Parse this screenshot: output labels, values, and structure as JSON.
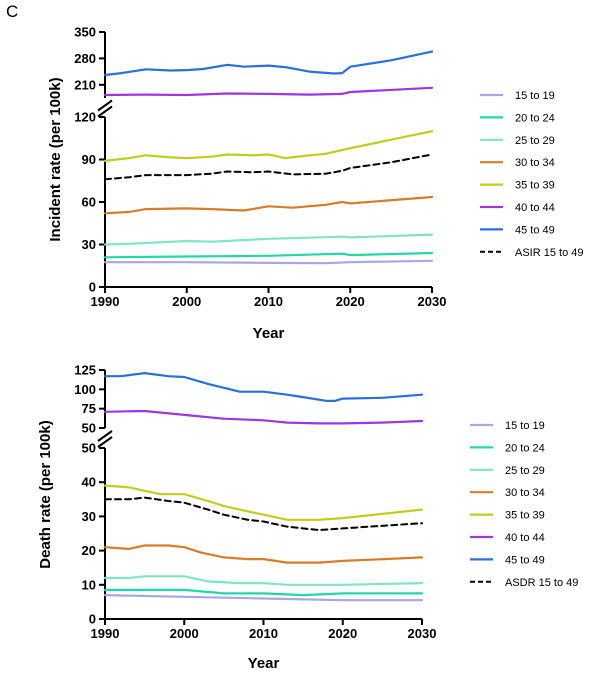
{
  "panel_label": "C",
  "chart_data": [
    {
      "type": "line",
      "title": "",
      "xlabel": "Year",
      "ylabel": "Incident rate (per 100k)",
      "xlim": [
        1990,
        2030
      ],
      "x_ticks": [
        "1990",
        "2000",
        "2010",
        "2020",
        "2030"
      ],
      "axis_breaks": [
        {
          "segment": "lower",
          "ylim": [
            0,
            120
          ],
          "ticks": [
            "0",
            "30",
            "60",
            "90",
            "120"
          ]
        },
        {
          "segment": "upper",
          "ylim": [
            175,
            350
          ],
          "ticks": [
            "210",
            "280",
            "350"
          ]
        }
      ],
      "legend_position": "right",
      "grid": false,
      "series": [
        {
          "name": "15 to 19",
          "color": "#a9a6e6",
          "dash": false,
          "segment": "lower",
          "x": [
            1990,
            2000,
            2010,
            2017,
            2020,
            2030
          ],
          "y": [
            17.5,
            17.5,
            17.0,
            16.8,
            17.5,
            18.5
          ]
        },
        {
          "name": "20 to 24",
          "color": "#22d8a8",
          "dash": false,
          "segment": "lower",
          "x": [
            1990,
            2000,
            2010,
            2019,
            2020,
            2030
          ],
          "y": [
            21,
            21.5,
            22,
            23.5,
            22.5,
            24
          ]
        },
        {
          "name": "25 to 29",
          "color": "#7fe6c4",
          "dash": false,
          "segment": "lower",
          "x": [
            1990,
            1993,
            2000,
            2003,
            2010,
            2019,
            2020,
            2030
          ],
          "y": [
            30,
            30.5,
            32.5,
            32,
            34,
            35.5,
            35,
            37
          ]
        },
        {
          "name": "30 to 34",
          "color": "#d87c28",
          "dash": false,
          "segment": "lower",
          "x": [
            1990,
            1993,
            1995,
            2000,
            2003,
            2007,
            2010,
            2013,
            2017,
            2019,
            2020,
            2030
          ],
          "y": [
            52,
            53,
            55,
            55.5,
            55,
            54,
            57,
            56,
            58,
            60,
            59,
            63.5
          ]
        },
        {
          "name": "35 to 39",
          "color": "#c3cc1e",
          "dash": false,
          "segment": "lower",
          "x": [
            1990,
            1993,
            1995,
            1998,
            2000,
            2003,
            2005,
            2008,
            2010,
            2012,
            2015,
            2017,
            2020,
            2025,
            2030
          ],
          "y": [
            89,
            91,
            93,
            91.5,
            91,
            92,
            93.5,
            93,
            93.5,
            91,
            93,
            94,
            98,
            104,
            110
          ]
        },
        {
          "name": "40 to 44",
          "color": "#9b38e0",
          "dash": false,
          "segment": "upper",
          "x": [
            1990,
            1995,
            2000,
            2005,
            2010,
            2015,
            2019,
            2020,
            2030
          ],
          "y": [
            183,
            184,
            183,
            187,
            186,
            184,
            186,
            191,
            202
          ]
        },
        {
          "name": "45 to 49",
          "color": "#2a6fe0",
          "dash": false,
          "segment": "upper",
          "x": [
            1990,
            1992,
            1995,
            1998,
            2000,
            2002,
            2005,
            2007,
            2010,
            2012,
            2015,
            2018,
            2019,
            2020,
            2025,
            2030
          ],
          "y": [
            236,
            241,
            251,
            248,
            249,
            252,
            263,
            258,
            261,
            257,
            245,
            240,
            241,
            258,
            275,
            298
          ]
        },
        {
          "name": "ASIR 15 to 49",
          "color": "#000000",
          "dash": true,
          "segment": "lower",
          "x": [
            1990,
            1993,
            1995,
            2000,
            2003,
            2005,
            2008,
            2010,
            2013,
            2017,
            2019,
            2020,
            2025,
            2030
          ],
          "y": [
            76,
            77.5,
            79,
            79,
            80,
            81.5,
            81,
            81.5,
            79.5,
            80,
            82,
            84,
            88,
            93.5
          ]
        }
      ]
    },
    {
      "type": "line",
      "title": "",
      "xlabel": "Year",
      "ylabel": "Death rate (per 100k)",
      "xlim": [
        1990,
        2030
      ],
      "x_ticks": [
        "1990",
        "2000",
        "2010",
        "2020",
        "2030"
      ],
      "axis_breaks": [
        {
          "segment": "lower",
          "ylim": [
            0,
            50
          ],
          "ticks": [
            "0",
            "10",
            "20",
            "30",
            "40",
            "50"
          ]
        },
        {
          "segment": "upper",
          "ylim": [
            50,
            125
          ],
          "ticks": [
            "50",
            "75",
            "100",
            "125"
          ]
        }
      ],
      "legend_position": "right",
      "grid": false,
      "series": [
        {
          "name": "15 to 19",
          "color": "#a9a6e6",
          "dash": false,
          "segment": "lower",
          "x": [
            1990,
            2000,
            2010,
            2020,
            2030
          ],
          "y": [
            7,
            6.5,
            6,
            5.5,
            5.5
          ]
        },
        {
          "name": "20 to 24",
          "color": "#22d8a8",
          "dash": false,
          "segment": "lower",
          "x": [
            1990,
            1995,
            2000,
            2005,
            2010,
            2015,
            2020,
            2030
          ],
          "y": [
            8.5,
            8.5,
            8.5,
            7.5,
            7.5,
            7,
            7.5,
            7.5
          ]
        },
        {
          "name": "25 to 29",
          "color": "#7fe6c4",
          "dash": false,
          "segment": "lower",
          "x": [
            1990,
            1993,
            1995,
            2000,
            2003,
            2007,
            2010,
            2013,
            2017,
            2020,
            2030
          ],
          "y": [
            12,
            12,
            12.5,
            12.5,
            11,
            10.5,
            10.5,
            10,
            10,
            10,
            10.5
          ]
        },
        {
          "name": "30 to 34",
          "color": "#d87c28",
          "dash": false,
          "segment": "lower",
          "x": [
            1990,
            1993,
            1995,
            1998,
            2000,
            2002,
            2005,
            2008,
            2010,
            2013,
            2017,
            2020,
            2030
          ],
          "y": [
            21,
            20.5,
            21.5,
            21.5,
            21,
            19.5,
            18,
            17.5,
            17.5,
            16.5,
            16.5,
            17,
            18
          ]
        },
        {
          "name": "35 to 39",
          "color": "#c3cc1e",
          "dash": false,
          "segment": "lower",
          "x": [
            1990,
            1993,
            1995,
            1997,
            2000,
            2003,
            2005,
            2008,
            2010,
            2013,
            2017,
            2020,
            2030
          ],
          "y": [
            39,
            38.5,
            37.5,
            36.5,
            36.5,
            34.5,
            33,
            31.5,
            30.5,
            29,
            29,
            29.5,
            32
          ]
        },
        {
          "name": "40 to 44",
          "color": "#9b38e0",
          "dash": false,
          "segment": "upper",
          "x": [
            1990,
            1995,
            2000,
            2005,
            2010,
            2013,
            2017,
            2020,
            2025,
            2030
          ],
          "y": [
            71,
            72,
            67,
            62,
            60,
            57,
            56,
            56,
            57,
            59
          ]
        },
        {
          "name": "45 to 49",
          "color": "#2a6fe0",
          "dash": false,
          "segment": "upper",
          "x": [
            1990,
            1992,
            1995,
            1998,
            2000,
            2003,
            2007,
            2010,
            2013,
            2015,
            2018,
            2019,
            2020,
            2025,
            2030
          ],
          "y": [
            117,
            117,
            121,
            117,
            116,
            107,
            97,
            97,
            93,
            90,
            85,
            85,
            88,
            89,
            93
          ]
        },
        {
          "name": "ASDR 15 to 49",
          "color": "#000000",
          "dash": true,
          "segment": "lower",
          "x": [
            1990,
            1993,
            1995,
            1998,
            2000,
            2003,
            2005,
            2008,
            2010,
            2013,
            2017,
            2020,
            2030
          ],
          "y": [
            35,
            35,
            35.5,
            34.5,
            34,
            32,
            30.5,
            29,
            28.5,
            27,
            26,
            26.5,
            28
          ]
        }
      ]
    }
  ]
}
